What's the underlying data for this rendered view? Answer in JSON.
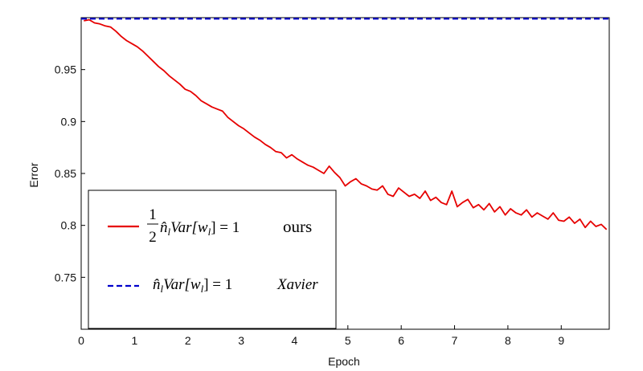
{
  "chart_data": {
    "type": "line",
    "xlabel": "Epoch",
    "ylabel": "Error",
    "xlim": [
      0,
      9.9
    ],
    "ylim": [
      0.7,
      1.0
    ],
    "x_ticks": [
      0,
      1,
      2,
      3,
      4,
      5,
      6,
      7,
      8,
      9
    ],
    "y_ticks": [
      0.75,
      0.8,
      0.85,
      0.9,
      0.95
    ],
    "grid": false,
    "legend_position": "lower-left",
    "series": [
      {
        "name": "ours",
        "formula": {
          "frac_num": "1",
          "frac_den": "2",
          "expr": "n̂",
          "sub": "l",
          "mid": "Var[w",
          "sub2": "l",
          "end": "] = 1"
        },
        "color": "#e60000",
        "style": "solid",
        "x": [
          0.05,
          0.15,
          0.25,
          0.35,
          0.45,
          0.55,
          0.65,
          0.75,
          0.85,
          0.95,
          1.05,
          1.15,
          1.25,
          1.35,
          1.45,
          1.55,
          1.65,
          1.75,
          1.85,
          1.95,
          2.05,
          2.15,
          2.25,
          2.35,
          2.45,
          2.55,
          2.65,
          2.75,
          2.85,
          2.95,
          3.05,
          3.15,
          3.25,
          3.35,
          3.45,
          3.55,
          3.65,
          3.75,
          3.85,
          3.95,
          4.05,
          4.15,
          4.25,
          4.35,
          4.45,
          4.55,
          4.65,
          4.75,
          4.85,
          4.95,
          5.05,
          5.15,
          5.25,
          5.35,
          5.45,
          5.55,
          5.65,
          5.75,
          5.85,
          5.95,
          6.05,
          6.15,
          6.25,
          6.35,
          6.45,
          6.55,
          6.65,
          6.75,
          6.85,
          6.95,
          7.05,
          7.15,
          7.25,
          7.35,
          7.45,
          7.55,
          7.65,
          7.75,
          7.85,
          7.95,
          8.05,
          8.15,
          8.25,
          8.35,
          8.45,
          8.55,
          8.65,
          8.75,
          8.85,
          8.95,
          9.05,
          9.15,
          9.25,
          9.35,
          9.45,
          9.55,
          9.65,
          9.75,
          9.85
        ],
        "values": [
          0.997,
          0.998,
          0.995,
          0.994,
          0.992,
          0.991,
          0.987,
          0.982,
          0.978,
          0.975,
          0.972,
          0.968,
          0.963,
          0.958,
          0.953,
          0.949,
          0.944,
          0.94,
          0.936,
          0.931,
          0.929,
          0.925,
          0.92,
          0.917,
          0.914,
          0.912,
          0.91,
          0.904,
          0.9,
          0.896,
          0.893,
          0.889,
          0.885,
          0.882,
          0.878,
          0.875,
          0.871,
          0.87,
          0.865,
          0.868,
          0.864,
          0.861,
          0.858,
          0.856,
          0.853,
          0.85,
          0.857,
          0.851,
          0.846,
          0.838,
          0.842,
          0.845,
          0.84,
          0.838,
          0.835,
          0.834,
          0.838,
          0.83,
          0.828,
          0.836,
          0.832,
          0.828,
          0.83,
          0.826,
          0.833,
          0.824,
          0.827,
          0.822,
          0.82,
          0.833,
          0.818,
          0.822,
          0.825,
          0.817,
          0.82,
          0.815,
          0.821,
          0.813,
          0.818,
          0.81,
          0.816,
          0.812,
          0.81,
          0.815,
          0.808,
          0.812,
          0.809,
          0.806,
          0.812,
          0.805,
          0.804,
          0.808,
          0.802,
          0.806,
          0.798,
          0.804,
          0.799,
          0.801,
          0.796
        ]
      },
      {
        "name": "Xavier",
        "formula": {
          "expr": "n̂",
          "sub": "l",
          "mid": "Var[w",
          "sub2": "l",
          "end": "] = 1"
        },
        "color": "#0000cc",
        "style": "dashed",
        "x": [
          0.0,
          9.9
        ],
        "values": [
          0.999,
          0.999
        ]
      }
    ]
  }
}
